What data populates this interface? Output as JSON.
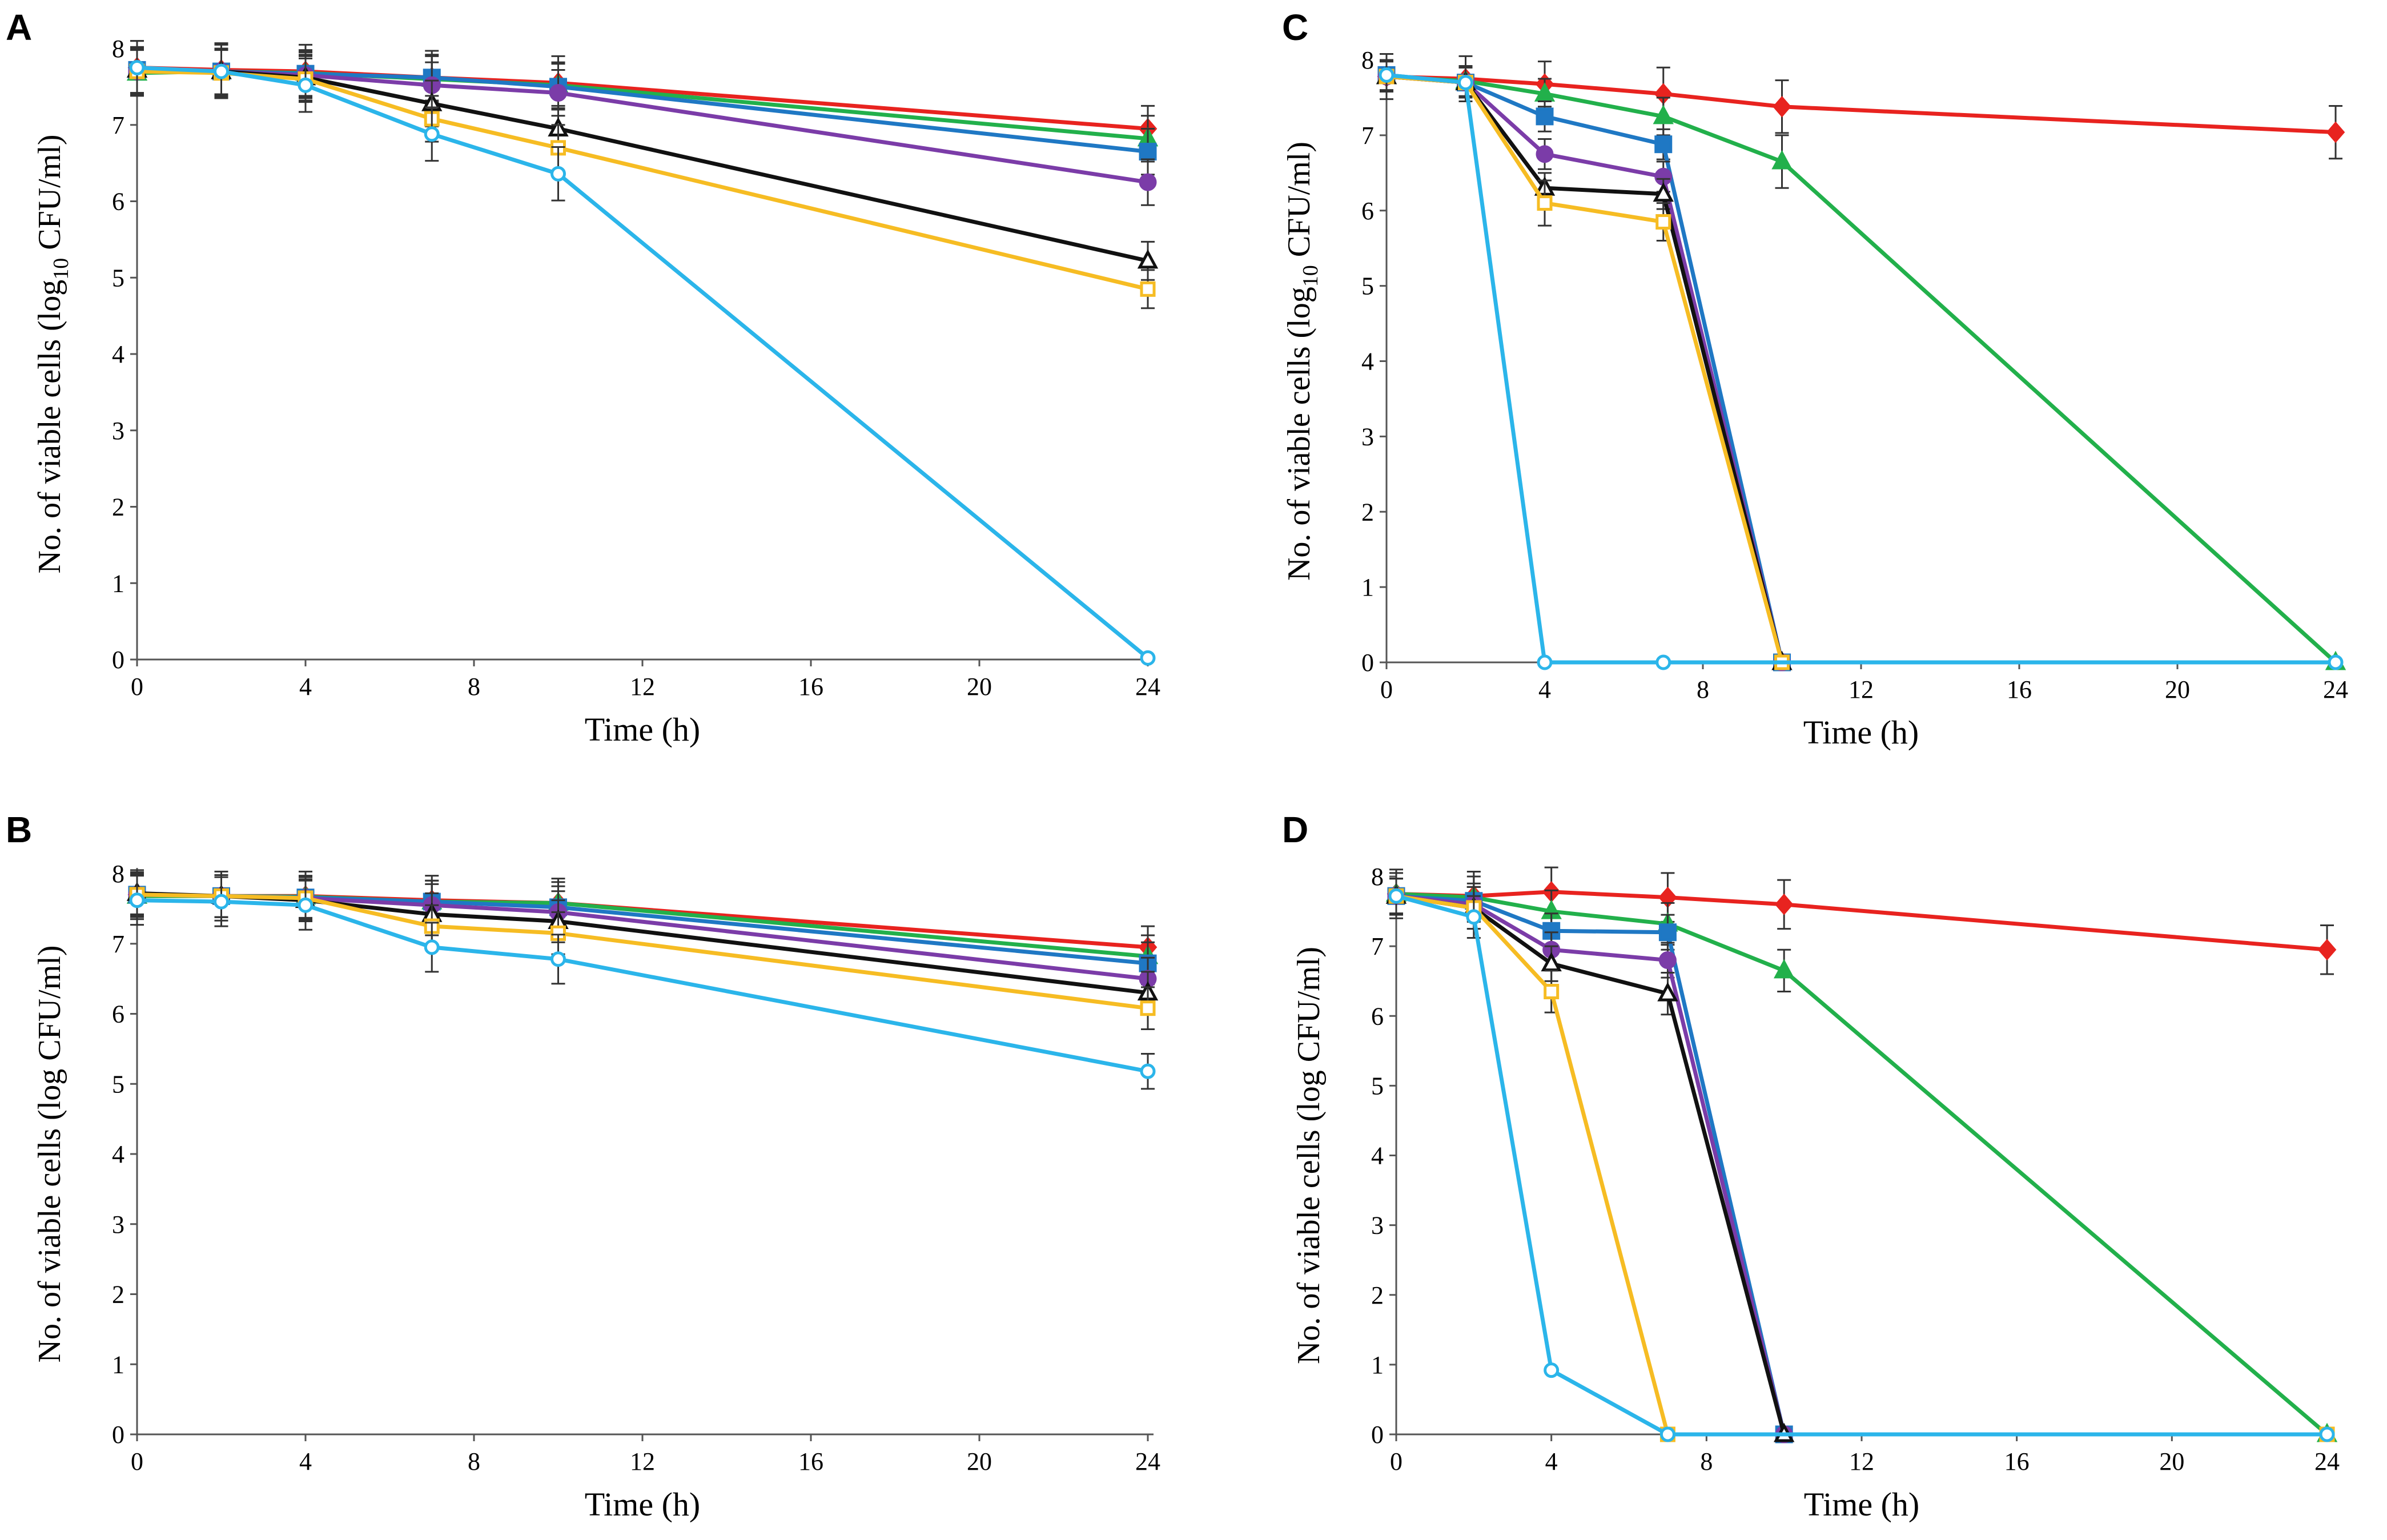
{
  "colors": {
    "red": "#E8231F",
    "green": "#22B04B",
    "blue": "#1F78C4",
    "purple": "#7B3CA8",
    "black": "#111111",
    "yellow": "#F6BC23",
    "cyan": "#2BB5EA"
  },
  "chart_data": [
    {
      "type": "line",
      "panel": "A",
      "xlabel": "Time (h)",
      "ylabel": "No. of viable cells (log10 CFU/ml)",
      "ylabel_parts": [
        "No. of viable cells (log",
        "10",
        " CFU/ml)"
      ],
      "xlim": [
        0,
        24
      ],
      "ylim": [
        0,
        8
      ],
      "xticks": [
        0,
        4,
        8,
        12,
        16,
        20,
        24
      ],
      "yticks": [
        0,
        1,
        2,
        3,
        4,
        5,
        6,
        7,
        8
      ],
      "series": [
        {
          "name": "red",
          "marker": "diamond",
          "x": [
            0,
            2,
            4,
            7,
            10,
            24
          ],
          "y": [
            7.75,
            7.72,
            7.7,
            7.62,
            7.55,
            6.95
          ],
          "err": [
            0.35,
            0.35,
            0.35,
            0.35,
            0.35,
            0.3
          ]
        },
        {
          "name": "green",
          "marker": "triangle",
          "x": [
            0,
            2,
            4,
            7,
            10,
            24
          ],
          "y": [
            7.68,
            7.7,
            7.68,
            7.6,
            7.52,
            6.82
          ],
          "err": [
            0.3,
            0.3,
            0.3,
            0.3,
            0.3,
            0.3
          ]
        },
        {
          "name": "blue",
          "marker": "square",
          "x": [
            0,
            2,
            4,
            7,
            10,
            24
          ],
          "y": [
            7.72,
            7.7,
            7.67,
            7.62,
            7.5,
            6.65
          ],
          "err": [
            0.3,
            0.3,
            0.3,
            0.3,
            0.3,
            0.3
          ]
        },
        {
          "name": "purple",
          "marker": "circle",
          "x": [
            0,
            2,
            4,
            7,
            10,
            24
          ],
          "y": [
            7.7,
            7.7,
            7.65,
            7.52,
            7.42,
            6.25
          ],
          "err": [
            0.3,
            0.3,
            0.3,
            0.3,
            0.3,
            0.3
          ]
        },
        {
          "name": "black",
          "marker": "open-triangle",
          "x": [
            0,
            2,
            4,
            7,
            10,
            24
          ],
          "y": [
            7.72,
            7.7,
            7.62,
            7.28,
            6.95,
            5.22
          ],
          "err": [
            0.3,
            0.3,
            0.3,
            0.3,
            0.3,
            0.25
          ]
        },
        {
          "name": "yellow",
          "marker": "open-square",
          "x": [
            0,
            2,
            4,
            7,
            10,
            24
          ],
          "y": [
            7.7,
            7.68,
            7.6,
            7.08,
            6.7,
            4.85
          ],
          "err": [
            0.3,
            0.3,
            0.3,
            0.3,
            0.3,
            0.25
          ]
        },
        {
          "name": "cyan",
          "marker": "open-circle",
          "x": [
            0,
            2,
            4,
            7,
            10,
            24
          ],
          "y": [
            7.75,
            7.7,
            7.52,
            6.88,
            6.36,
            0.02
          ],
          "err": [
            0.35,
            0.35,
            0.35,
            0.35,
            0.35,
            0.0
          ]
        }
      ]
    },
    {
      "type": "line",
      "panel": "B",
      "xlabel": "Time (h)",
      "ylabel": "No. of viable cells (log CFU/ml)",
      "xlim": [
        0,
        24
      ],
      "ylim": [
        0,
        8
      ],
      "xticks": [
        0,
        4,
        8,
        12,
        16,
        20,
        24
      ],
      "yticks": [
        0,
        1,
        2,
        3,
        4,
        5,
        6,
        7,
        8
      ],
      "series": [
        {
          "name": "red",
          "marker": "diamond",
          "x": [
            0,
            2,
            4,
            7,
            10,
            24
          ],
          "y": [
            7.7,
            7.68,
            7.68,
            7.62,
            7.58,
            6.95
          ],
          "err": [
            0.35,
            0.35,
            0.35,
            0.35,
            0.35,
            0.3
          ]
        },
        {
          "name": "green",
          "marker": "triangle",
          "x": [
            0,
            2,
            4,
            7,
            10,
            24
          ],
          "y": [
            7.68,
            7.68,
            7.67,
            7.6,
            7.58,
            6.82
          ],
          "err": [
            0.3,
            0.3,
            0.3,
            0.3,
            0.3,
            0.3
          ]
        },
        {
          "name": "blue",
          "marker": "square",
          "x": [
            0,
            2,
            4,
            7,
            10,
            24
          ],
          "y": [
            7.7,
            7.68,
            7.66,
            7.6,
            7.52,
            6.72
          ],
          "err": [
            0.3,
            0.3,
            0.3,
            0.3,
            0.3,
            0.3
          ]
        },
        {
          "name": "purple",
          "marker": "circle",
          "x": [
            0,
            2,
            4,
            7,
            10,
            24
          ],
          "y": [
            7.7,
            7.68,
            7.65,
            7.55,
            7.45,
            6.5
          ],
          "err": [
            0.3,
            0.3,
            0.3,
            0.3,
            0.3,
            0.3
          ]
        },
        {
          "name": "black",
          "marker": "open-triangle",
          "x": [
            0,
            2,
            4,
            7,
            10,
            24
          ],
          "y": [
            7.72,
            7.68,
            7.62,
            7.42,
            7.32,
            6.3
          ],
          "err": [
            0.3,
            0.3,
            0.3,
            0.3,
            0.3,
            0.3
          ]
        },
        {
          "name": "yellow",
          "marker": "open-square",
          "x": [
            0,
            2,
            4,
            7,
            10,
            24
          ],
          "y": [
            7.7,
            7.68,
            7.65,
            7.25,
            7.15,
            6.08
          ],
          "err": [
            0.3,
            0.3,
            0.3,
            0.3,
            0.3,
            0.3
          ]
        },
        {
          "name": "cyan",
          "marker": "open-circle",
          "x": [
            0,
            2,
            4,
            7,
            10,
            24
          ],
          "y": [
            7.62,
            7.6,
            7.55,
            6.95,
            6.78,
            5.18
          ],
          "err": [
            0.35,
            0.35,
            0.35,
            0.35,
            0.35,
            0.25
          ]
        }
      ]
    },
    {
      "type": "line",
      "panel": "C",
      "xlabel": "Time (h)",
      "ylabel": "No. of viable cells (log10 CFU/ml)",
      "ylabel_parts": [
        "No. of viable cells (log",
        "10",
        " CFU/ml)"
      ],
      "xlim": [
        0,
        24
      ],
      "ylim": [
        0,
        8
      ],
      "xticks": [
        0,
        4,
        8,
        12,
        16,
        20,
        24
      ],
      "yticks": [
        0,
        1,
        2,
        3,
        4,
        5,
        6,
        7,
        8
      ],
      "series": [
        {
          "name": "red",
          "marker": "diamond",
          "x": [
            0,
            2,
            4,
            7,
            10,
            24
          ],
          "y": [
            7.78,
            7.75,
            7.68,
            7.55,
            7.38,
            7.04
          ],
          "err": [
            0.3,
            0.3,
            0.3,
            0.35,
            0.35,
            0.35
          ]
        },
        {
          "name": "green",
          "marker": "triangle",
          "x": [
            0,
            2,
            4,
            7,
            10,
            24
          ],
          "y": [
            7.78,
            7.72,
            7.55,
            7.25,
            6.65,
            0.0
          ],
          "err": [
            0.2,
            0.2,
            0.2,
            0.25,
            0.35,
            0.0
          ]
        },
        {
          "name": "blue",
          "marker": "square",
          "x": [
            0,
            2,
            4,
            7,
            10
          ],
          "y": [
            7.8,
            7.7,
            7.25,
            6.88,
            0.0
          ],
          "err": [
            0.2,
            0.2,
            0.2,
            0.2,
            0.0
          ]
        },
        {
          "name": "purple",
          "marker": "circle",
          "x": [
            0,
            2,
            4,
            7,
            10
          ],
          "y": [
            7.78,
            7.7,
            6.75,
            6.45,
            0.0
          ],
          "err": [
            0.2,
            0.2,
            0.2,
            0.2,
            0.0
          ]
        },
        {
          "name": "black",
          "marker": "open-triangle",
          "x": [
            0,
            2,
            4,
            7,
            10
          ],
          "y": [
            7.78,
            7.7,
            6.3,
            6.22,
            0.0
          ],
          "err": [
            0.2,
            0.2,
            0.2,
            0.2,
            0.0
          ]
        },
        {
          "name": "yellow",
          "marker": "open-square",
          "x": [
            0,
            2,
            4,
            7,
            10
          ],
          "y": [
            7.78,
            7.7,
            6.1,
            5.85,
            0.0
          ],
          "err": [
            0.2,
            0.2,
            0.3,
            0.25,
            0.0
          ]
        },
        {
          "name": "cyan",
          "marker": "open-circle",
          "x": [
            0,
            2,
            4,
            7,
            24
          ],
          "y": [
            7.8,
            7.7,
            0.0,
            0.0,
            0.0
          ],
          "err": [
            0.2,
            0.2,
            0.0,
            0.0,
            0.0
          ]
        }
      ]
    },
    {
      "type": "line",
      "panel": "D",
      "xlabel": "Time (h)",
      "ylabel": "No. of viable cells (log CFU/ml)",
      "xlim": [
        0,
        24
      ],
      "ylim": [
        0,
        8
      ],
      "xticks": [
        0,
        4,
        8,
        12,
        16,
        20,
        24
      ],
      "yticks": [
        0,
        1,
        2,
        3,
        4,
        5,
        6,
        7,
        8
      ],
      "series": [
        {
          "name": "red",
          "marker": "diamond",
          "x": [
            0,
            2,
            4,
            7,
            10,
            24
          ],
          "y": [
            7.75,
            7.72,
            7.78,
            7.7,
            7.6,
            6.95
          ],
          "err": [
            0.35,
            0.35,
            0.35,
            0.35,
            0.35,
            0.35
          ]
        },
        {
          "name": "green",
          "marker": "triangle",
          "x": [
            0,
            2,
            4,
            7,
            10,
            24
          ],
          "y": [
            7.75,
            7.7,
            7.5,
            7.32,
            6.65,
            0.0
          ],
          "err": [
            0.3,
            0.3,
            0.3,
            0.3,
            0.3,
            0.0
          ]
        },
        {
          "name": "blue",
          "marker": "square",
          "x": [
            0,
            2,
            4,
            7,
            10
          ],
          "y": [
            7.72,
            7.65,
            7.22,
            7.2,
            0.0
          ],
          "err": [
            0.25,
            0.25,
            0.25,
            0.25,
            0.0
          ]
        },
        {
          "name": "purple",
          "marker": "circle",
          "x": [
            0,
            2,
            4,
            7,
            10
          ],
          "y": [
            7.72,
            7.6,
            6.95,
            6.8,
            0.0
          ],
          "err": [
            0.25,
            0.25,
            0.25,
            0.25,
            0.0
          ]
        },
        {
          "name": "black",
          "marker": "open-triangle",
          "x": [
            0,
            2,
            4,
            7,
            10
          ],
          "y": [
            7.72,
            7.55,
            6.75,
            6.32,
            0.0
          ],
          "err": [
            0.25,
            0.3,
            0.25,
            0.3,
            0.0
          ]
        },
        {
          "name": "yellow",
          "marker": "open-square",
          "x": [
            0,
            2,
            4,
            7,
            24
          ],
          "y": [
            7.72,
            7.55,
            6.35,
            0.0,
            0.0
          ],
          "err": [
            0.25,
            0.3,
            0.3,
            0.0,
            0.0
          ]
        },
        {
          "name": "cyan",
          "marker": "open-circle",
          "x": [
            0,
            2,
            4,
            7,
            24
          ],
          "y": [
            7.72,
            7.42,
            0.92,
            0.0,
            0.0
          ],
          "err": [
            0.25,
            0.3,
            0.0,
            0.0,
            0.0
          ]
        }
      ]
    }
  ]
}
